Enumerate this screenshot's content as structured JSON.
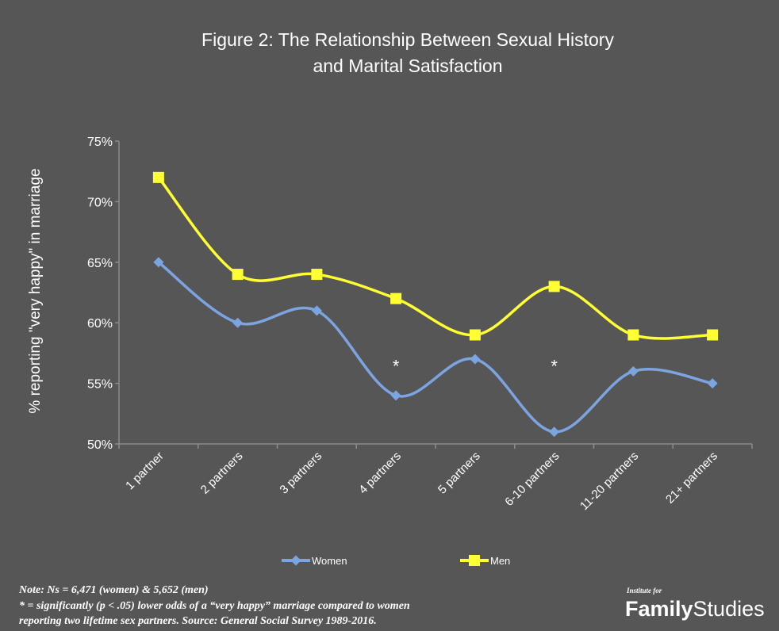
{
  "chart_data": {
    "type": "line",
    "title_line1": "Figure  2: The Relationship Between Sexual History",
    "title_line2": "and Marital Satisfaction",
    "ylabel": "% reporting \"very happy\" in marriage",
    "xlabel": "",
    "categories": [
      "1 partner",
      "2 partners",
      "3 partners",
      "4 partners",
      "5 partners",
      "6-10 partners",
      "11-20 partners",
      "21+ partners"
    ],
    "ylim": [
      50,
      75
    ],
    "yticks": [
      50,
      55,
      60,
      65,
      70,
      75
    ],
    "ytick_labels": [
      "50%",
      "55%",
      "60%",
      "65%",
      "70%",
      "75%"
    ],
    "grid": false,
    "legend_position": "bottom",
    "series": [
      {
        "name": "Women",
        "values": [
          65,
          60,
          61,
          54,
          57,
          51,
          56,
          55
        ],
        "color": "#7ba4e0",
        "marker": "diamond"
      },
      {
        "name": "Men",
        "values": [
          72,
          64,
          64,
          62,
          59,
          63,
          59,
          59
        ],
        "color": "#ffff33",
        "marker": "square"
      }
    ],
    "annotations": [
      {
        "text": "*",
        "category": "4 partners",
        "y": 56.7
      },
      {
        "text": "*",
        "category": "6-10 partners",
        "y": 56.7
      }
    ]
  },
  "note": {
    "line1": "Note: Ns = 6,471 (women) & 5,652 (men)",
    "line2": "* = significantly (p < .05) lower odds of a “very happy” marriage compared to women",
    "line3": "reporting two lifetime sex partners.  Source: General Social Survey 1989-2016."
  },
  "logo": {
    "small": "Institute for",
    "bold": "Family",
    "regular": "Studies"
  },
  "colors": {
    "background": "#565656",
    "axis": "#8c8c8c",
    "text": "#ffffff"
  }
}
